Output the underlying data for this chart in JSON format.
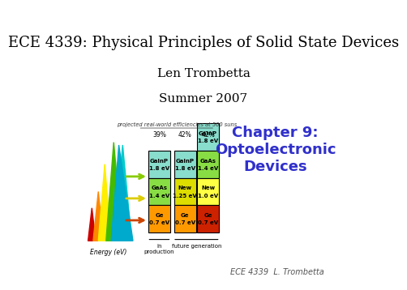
{
  "title": "ECE 4339: Physical Principles of Solid State Devices",
  "author": "Len Trombetta",
  "year": "Summer 2007",
  "chapter": "Chapter 9:\nOptoelectronic\nDevices",
  "footer": "ECE 4339  L. Trombetta",
  "title_fontsize": 13,
  "author_fontsize": 11,
  "year_fontsize": 11,
  "chapter_fontsize": 13,
  "chapter_color": "#3030cc",
  "footer_fontsize": 7,
  "bg_color": "#ffffff",
  "title_color": "#000000",
  "author_color": "#000000",
  "footer_color": "#555555"
}
